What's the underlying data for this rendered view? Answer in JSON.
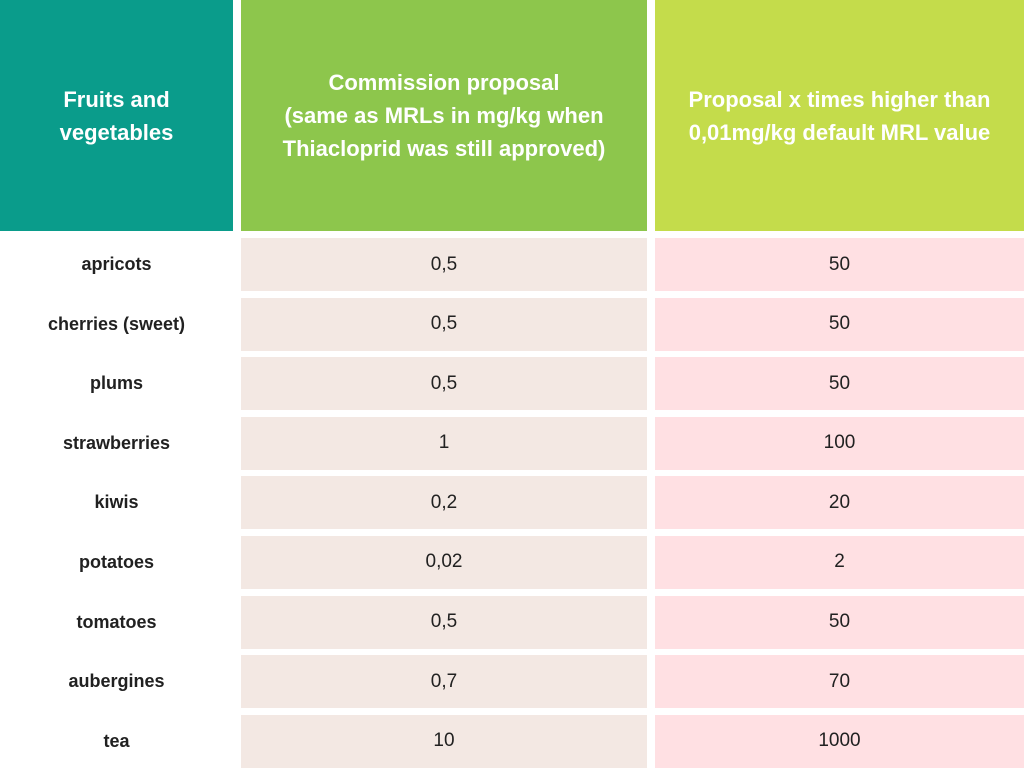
{
  "colors": {
    "header_col1_bg": "#0a9c8b",
    "header_col2_bg": "#8dc64c",
    "header_col3_bg": "#c4dc4b",
    "proposal_cell_bg": "#f3e8e3",
    "times_cell_bg": "#ffe0e3",
    "header_text": "#ffffff",
    "body_text": "#212121",
    "page_bg": "#ffffff"
  },
  "table": {
    "headers": [
      {
        "label": "Fruits and\nvegetables"
      },
      {
        "label": "Commission proposal\n(same as MRLs in mg/kg when\nThiacloprid was still approved)"
      },
      {
        "label": "Proposal x times higher than\n0,01mg/kg default MRL value"
      }
    ],
    "rows": [
      {
        "name": "apricots",
        "proposal": "0,5",
        "times": "50"
      },
      {
        "name": "cherries (sweet)",
        "proposal": "0,5",
        "times": "50"
      },
      {
        "name": "plums",
        "proposal": "0,5",
        "times": "50"
      },
      {
        "name": "strawberries",
        "proposal": "1",
        "times": "100"
      },
      {
        "name": "kiwis",
        "proposal": "0,2",
        "times": "20"
      },
      {
        "name": "potatoes",
        "proposal": "0,02",
        "times": "2"
      },
      {
        "name": "tomatoes",
        "proposal": "0,5",
        "times": "50"
      },
      {
        "name": "aubergines",
        "proposal": "0,7",
        "times": "70"
      },
      {
        "name": "tea",
        "proposal": "10",
        "times": "1000"
      }
    ]
  },
  "chart_data": {
    "type": "table",
    "title": "",
    "columns": [
      "Fruits and vegetables",
      "Commission proposal (same as MRLs in mg/kg when Thiacloprid was still approved)",
      "Proposal x times higher than 0,01mg/kg default MRL value"
    ],
    "rows": [
      [
        "apricots",
        0.5,
        50
      ],
      [
        "cherries (sweet)",
        0.5,
        50
      ],
      [
        "plums",
        0.5,
        50
      ],
      [
        "strawberries",
        1,
        100
      ],
      [
        "kiwis",
        0.2,
        20
      ],
      [
        "potatoes",
        0.02,
        2
      ],
      [
        "tomatoes",
        0.5,
        50
      ],
      [
        "aubergines",
        0.7,
        70
      ],
      [
        "tea",
        10,
        1000
      ]
    ],
    "units": "mg/kg",
    "notes": "Decimal comma formatting as shown in image"
  }
}
